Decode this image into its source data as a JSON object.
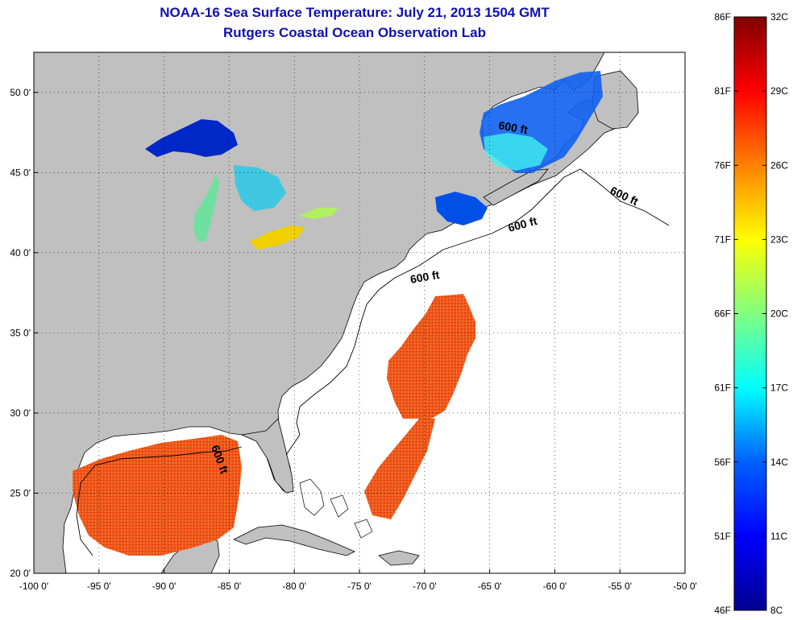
{
  "title_line1": "NOAA-16 Sea Surface Temperature:  July 21, 2013 1504 GMT",
  "title_line2": "Rutgers Coastal Ocean Observation Lab",
  "map": {
    "lon_range": [
      -100,
      -50
    ],
    "lat_range": [
      20,
      52.5
    ],
    "x_ticks": [
      "-100 0'",
      "-95 0'",
      "-90 0'",
      "-85 0'",
      "-80 0'",
      "-75 0'",
      "-70 0'",
      "-65 0'",
      "-60 0'",
      "-55 0'",
      "-50 0'"
    ],
    "y_ticks": [
      "20 0'",
      "25 0'",
      "30 0'",
      "35 0'",
      "40 0'",
      "45 0'",
      "50 0'"
    ],
    "grid": true,
    "land_color": "#c0c0c0",
    "ocean_color": "#ffffff",
    "contour_label": "600 ft"
  },
  "colorbar": {
    "celsius_labels": [
      "32C",
      "29C",
      "26C",
      "23C",
      "20C",
      "17C",
      "14C",
      "11C",
      "8C"
    ],
    "fahrenheit_labels": [
      "86F",
      "81F",
      "76F",
      "71F",
      "66F",
      "61F",
      "56F",
      "51F",
      "46F"
    ],
    "range_c": [
      8,
      32
    ],
    "colormap": [
      "#00008f",
      "#0000ff",
      "#0080ff",
      "#00ffff",
      "#80ff80",
      "#ffff00",
      "#ff8000",
      "#ff0000",
      "#800000"
    ]
  }
}
